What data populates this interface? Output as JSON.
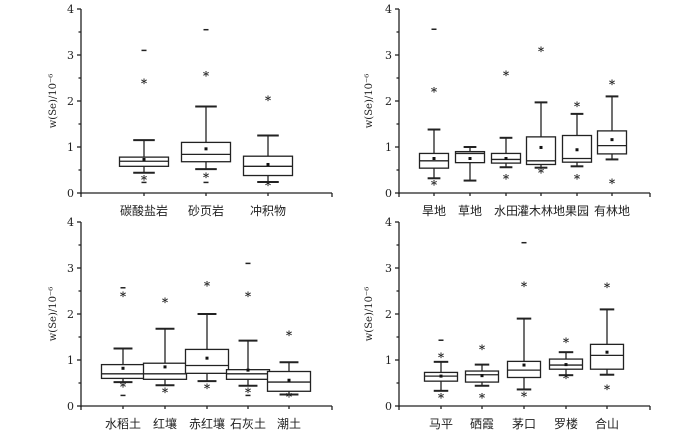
{
  "chart_data": [
    {
      "type": "box",
      "ylabel": "w(Se)/10⁻⁶",
      "ylim": [
        0,
        4
      ],
      "yticks": [
        "0",
        "1",
        "2",
        "3",
        "4"
      ],
      "categories": [
        "碳酸盐岩",
        "砂页岩",
        "冲积物"
      ],
      "boxes": [
        {
          "whisker_low": 0.44,
          "q1": 0.58,
          "median": 0.69,
          "q3": 0.78,
          "whisker_high": 1.15,
          "mean": 0.73,
          "outliers": [
            2.4,
            0.3
          ],
          "extremes": [
            3.1,
            0.23
          ]
        },
        {
          "whisker_low": 0.52,
          "q1": 0.68,
          "median": 0.84,
          "q3": 1.1,
          "whisker_high": 1.88,
          "mean": 0.96,
          "outliers": [
            2.56,
            0.36
          ],
          "extremes": [
            3.55,
            0.23
          ]
        },
        {
          "whisker_low": 0.24,
          "q1": 0.38,
          "median": 0.58,
          "q3": 0.8,
          "whisker_high": 1.25,
          "mean": 0.62,
          "outliers": [
            2.03,
            0.18
          ],
          "extremes": []
        }
      ]
    },
    {
      "type": "box",
      "ylabel": "w(Se)/10⁻⁶",
      "ylim": [
        0,
        4
      ],
      "yticks": [
        "0",
        "1",
        "2",
        "3",
        "4"
      ],
      "categories": [
        "旱地",
        "草地",
        "水田",
        "灌木林地",
        "果园",
        "有林地"
      ],
      "boxes": [
        {
          "whisker_low": 0.32,
          "q1": 0.54,
          "median": 0.7,
          "q3": 0.86,
          "whisker_high": 1.38,
          "mean": 0.75,
          "outliers": [
            2.22,
            0.2
          ],
          "extremes": [
            3.56
          ]
        },
        {
          "whisker_low": 0.27,
          "q1": 0.66,
          "median": 0.86,
          "q3": 0.9,
          "whisker_high": 1.0,
          "mean": 0.75,
          "outliers": [],
          "extremes": []
        },
        {
          "whisker_low": 0.56,
          "q1": 0.65,
          "median": 0.73,
          "q3": 0.86,
          "whisker_high": 1.2,
          "mean": 0.75,
          "outliers": [
            2.58,
            0.33
          ],
          "extremes": []
        },
        {
          "whisker_low": 0.55,
          "q1": 0.62,
          "median": 0.7,
          "q3": 1.22,
          "whisker_high": 1.97,
          "mean": 0.99,
          "outliers": [
            3.1,
            0.46
          ],
          "extremes": []
        },
        {
          "whisker_low": 0.58,
          "q1": 0.67,
          "median": 0.75,
          "q3": 1.25,
          "whisker_high": 1.72,
          "mean": 0.94,
          "outliers": [
            1.9,
            0.33
          ],
          "extremes": []
        },
        {
          "whisker_low": 0.73,
          "q1": 0.85,
          "median": 1.03,
          "q3": 1.35,
          "whisker_high": 2.1,
          "mean": 1.16,
          "outliers": [
            2.38,
            0.23
          ],
          "extremes": []
        }
      ]
    },
    {
      "type": "box",
      "ylabel": "w(Se)/10⁻⁶",
      "ylim": [
        0,
        4
      ],
      "yticks": [
        "0",
        "1",
        "2",
        "3",
        "4"
      ],
      "categories": [
        "水稻土",
        "红壤",
        "赤红壤",
        "石灰土",
        "潮土"
      ],
      "boxes": [
        {
          "whisker_low": 0.52,
          "q1": 0.6,
          "median": 0.7,
          "q3": 0.9,
          "whisker_high": 1.25,
          "mean": 0.82,
          "outliers": [
            2.4,
            0.43
          ],
          "extremes": [
            2.57,
            0.23
          ]
        },
        {
          "whisker_low": 0.45,
          "q1": 0.58,
          "median": 0.7,
          "q3": 0.93,
          "whisker_high": 1.68,
          "mean": 0.85,
          "outliers": [
            2.27,
            0.31
          ],
          "extremes": []
        },
        {
          "whisker_low": 0.54,
          "q1": 0.71,
          "median": 0.88,
          "q3": 1.23,
          "whisker_high": 2.0,
          "mean": 1.04,
          "outliers": [
            2.63,
            0.4
          ],
          "extremes": []
        },
        {
          "whisker_low": 0.44,
          "q1": 0.58,
          "median": 0.7,
          "q3": 0.79,
          "whisker_high": 1.42,
          "mean": 0.78,
          "outliers": [
            2.4,
            0.32
          ],
          "extremes": [
            3.1,
            0.23
          ]
        },
        {
          "whisker_low": 0.25,
          "q1": 0.32,
          "median": 0.52,
          "q3": 0.75,
          "whisker_high": 0.95,
          "mean": 0.56,
          "outliers": [
            1.55,
            0.22
          ],
          "extremes": []
        }
      ]
    },
    {
      "type": "box",
      "ylabel": "w(Se)/10⁻⁶",
      "ylim": [
        0,
        4
      ],
      "yticks": [
        "0",
        "1",
        "2",
        "3",
        "4"
      ],
      "categories": [
        "马平",
        "硒霞",
        "茅口",
        "罗楼",
        "合山"
      ],
      "boxes": [
        {
          "whisker_low": 0.33,
          "q1": 0.54,
          "median": 0.65,
          "q3": 0.73,
          "whisker_high": 0.96,
          "mean": 0.65,
          "outliers": [
            1.08,
            0.2
          ],
          "extremes": [
            1.43
          ]
        },
        {
          "whisker_low": 0.44,
          "q1": 0.52,
          "median": 0.68,
          "q3": 0.76,
          "whisker_high": 0.9,
          "mean": 0.66,
          "outliers": [
            1.25,
            0.2
          ],
          "extremes": []
        },
        {
          "whisker_low": 0.36,
          "q1": 0.62,
          "median": 0.78,
          "q3": 0.97,
          "whisker_high": 1.9,
          "mean": 0.89,
          "outliers": [
            2.62,
            0.23
          ],
          "extremes": [
            3.55
          ]
        },
        {
          "whisker_low": 0.67,
          "q1": 0.8,
          "median": 0.89,
          "q3": 1.02,
          "whisker_high": 1.17,
          "mean": 0.9,
          "outliers": [
            1.4,
            0.62
          ],
          "extremes": []
        },
        {
          "whisker_low": 0.68,
          "q1": 0.8,
          "median": 1.1,
          "q3": 1.34,
          "whisker_high": 2.1,
          "mean": 1.17,
          "outliers": [
            2.6,
            0.38
          ],
          "extremes": []
        }
      ]
    }
  ]
}
